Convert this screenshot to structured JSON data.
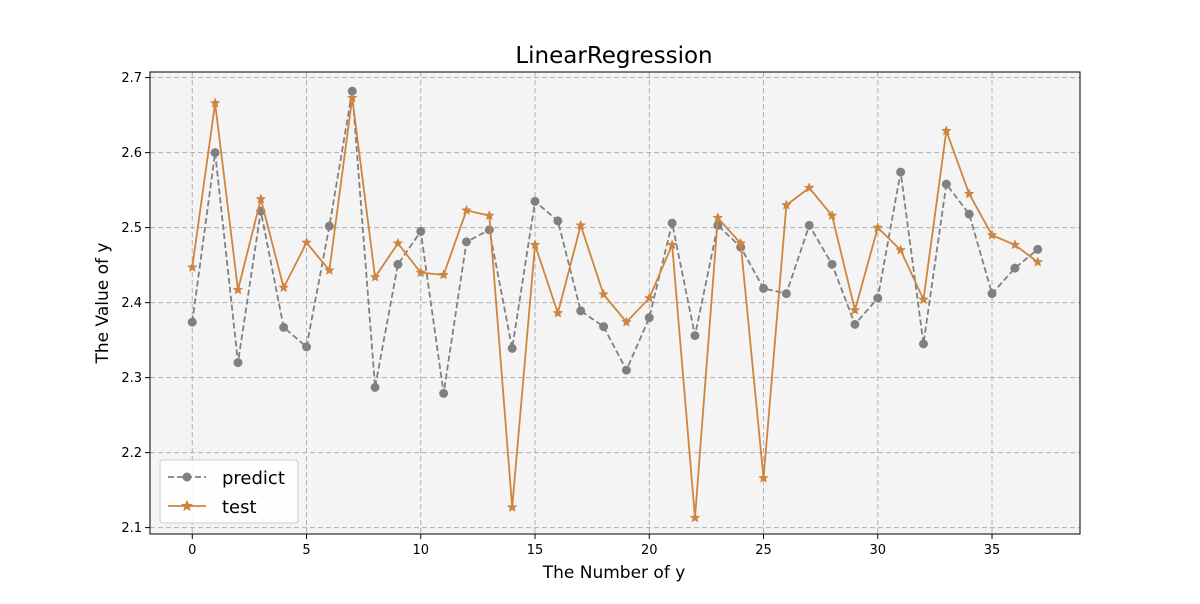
{
  "chart_data": {
    "type": "line",
    "title": "LinearRegression",
    "xlabel": "The Number of y",
    "ylabel": "The Value of y",
    "xlim": [
      -1.85,
      38.85
    ],
    "ylim": [
      2.0915,
      2.7075
    ],
    "x_ticks": [
      0,
      5,
      10,
      15,
      20,
      25,
      30,
      35
    ],
    "x_tick_labels": [
      "0",
      "5",
      "10",
      "15",
      "20",
      "25",
      "30",
      "35"
    ],
    "y_ticks": [
      2.1,
      2.2,
      2.3,
      2.4,
      2.5,
      2.6,
      2.7
    ],
    "y_tick_labels": [
      "2.1",
      "2.2",
      "2.3",
      "2.4",
      "2.5",
      "2.6",
      "2.7"
    ],
    "grid": true,
    "legend_position": "lower-left",
    "plot_background": "#f4f4f4",
    "grid_color": "#b0b0b0",
    "x": [
      0,
      1,
      2,
      3,
      4,
      5,
      6,
      7,
      8,
      9,
      10,
      11,
      12,
      13,
      14,
      15,
      16,
      17,
      18,
      19,
      20,
      21,
      22,
      23,
      24,
      25,
      26,
      27,
      28,
      29,
      30,
      31,
      32,
      33,
      34,
      35,
      36,
      37
    ],
    "series": [
      {
        "name": "predict",
        "color": "#808080",
        "line_style": "dashed",
        "marker": "circle",
        "values": [
          2.374,
          2.6,
          2.32,
          2.522,
          2.367,
          2.341,
          2.502,
          2.682,
          2.287,
          2.451,
          2.495,
          2.279,
          2.481,
          2.497,
          2.339,
          2.535,
          2.509,
          2.389,
          2.368,
          2.31,
          2.38,
          2.506,
          2.356,
          2.503,
          2.474,
          2.419,
          2.412,
          2.503,
          2.451,
          2.371,
          2.406,
          2.574,
          2.345,
          2.558,
          2.518,
          2.412,
          2.446,
          2.471
        ]
      },
      {
        "name": "test",
        "color": "#cd853f",
        "line_style": "solid",
        "marker": "star",
        "values": [
          2.447,
          2.666,
          2.417,
          2.538,
          2.42,
          2.48,
          2.443,
          2.673,
          2.434,
          2.479,
          2.44,
          2.437,
          2.523,
          2.516,
          2.127,
          2.477,
          2.386,
          2.503,
          2.411,
          2.374,
          2.406,
          2.477,
          2.113,
          2.513,
          2.479,
          2.166,
          2.53,
          2.553,
          2.516,
          2.39,
          2.5,
          2.47,
          2.404,
          2.629,
          2.545,
          2.49,
          2.477,
          2.454
        ]
      }
    ]
  }
}
